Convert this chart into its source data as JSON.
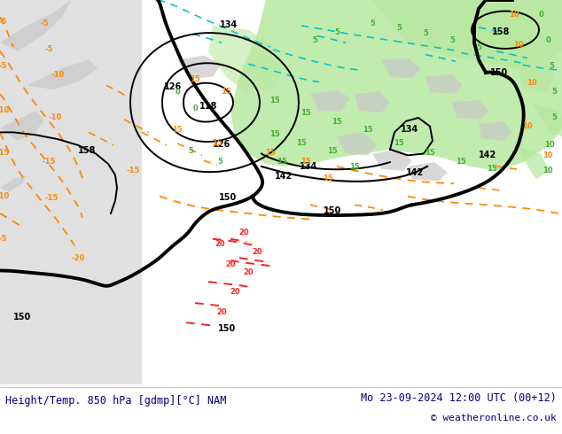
{
  "figsize": [
    6.34,
    4.9
  ],
  "dpi": 100,
  "bottom_text_left": "Height/Temp. 850 hPa [gdmp][°C] NAM",
  "bottom_text_right": "Mo 23-09-2024 12:00 UTC (00+12)",
  "bottom_text_right2": "© weatheronline.co.uk",
  "text_color": "#000080",
  "title_fontsize": 8.5,
  "credit_fontsize": 8,
  "bg_gray": "#c8c8c8",
  "bg_light_gray": "#d8d8d8",
  "green_warm": "#b8e8a0",
  "green_darker": "#8cc870",
  "ocean_white": "#e8e8e8",
  "black_contour": "#000000",
  "orange_contour": "#ff8800",
  "orange_warm": "#ffa040",
  "cyan_contour": "#00c8c8",
  "red_contour": "#ff2020",
  "green_label": "#40b030",
  "label_fontsize": 7
}
